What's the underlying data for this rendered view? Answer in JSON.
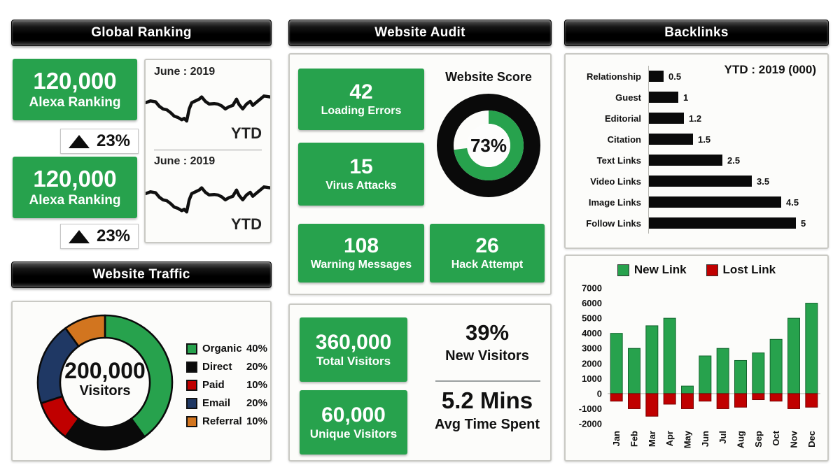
{
  "colors": {
    "green": "#27a24d",
    "green_dark": "#14662f",
    "red": "#c00000",
    "red_dark": "#7a0000",
    "navy": "#1f3864",
    "orange": "#d2751f",
    "bar_black": "#0a0a0a"
  },
  "global_ranking": {
    "title": "Global Ranking",
    "cards": [
      {
        "value": "120,000",
        "label": "Alexa Ranking",
        "delta": "23%"
      },
      {
        "value": "120,000",
        "label": "Alexa Ranking",
        "delta": "23%"
      }
    ],
    "trend_sections": [
      {
        "period": "June : 2019",
        "range_label": "YTD"
      },
      {
        "period": "June : 2019",
        "range_label": "YTD"
      }
    ]
  },
  "website_traffic": {
    "title": "Website Traffic",
    "center_value": "200,000",
    "center_label": "Visitors"
  },
  "website_audit": {
    "title": "Website Audit",
    "metrics": [
      {
        "value": "42",
        "label": "Loading Errors"
      },
      {
        "value": "15",
        "label": "Virus Attacks"
      },
      {
        "value": "108",
        "label": "Warning Messages"
      },
      {
        "value": "26",
        "label": "Hack Attempt"
      }
    ],
    "score_title": "Website Score"
  },
  "visitors_summary": {
    "metrics": [
      {
        "value": "360,000",
        "label": "Total Visitors"
      },
      {
        "value": "60,000",
        "label": "Unique Visitors"
      }
    ],
    "stats": [
      {
        "value": "39%",
        "label": "New Visitors"
      },
      {
        "value": "5.2 Mins",
        "label": "Avg Time Spent"
      }
    ]
  },
  "backlinks": {
    "title": "Backlinks",
    "ytd_label": "YTD : 2019 (000)"
  },
  "chart_data": [
    {
      "id": "alexa_trend",
      "type": "line",
      "title": "Alexa Ranking trend",
      "subtitle": "June : 2019",
      "annotation": "YTD",
      "note": "unlabeled sparkline shown twice; points are percent of chart width/height",
      "points_pct": [
        [
          0,
          42
        ],
        [
          4,
          38
        ],
        [
          8,
          40
        ],
        [
          11,
          50
        ],
        [
          14,
          56
        ],
        [
          17,
          58
        ],
        [
          20,
          64
        ],
        [
          23,
          72
        ],
        [
          26,
          75
        ],
        [
          29,
          80
        ],
        [
          31,
          77
        ],
        [
          33,
          83
        ],
        [
          35,
          56
        ],
        [
          37,
          42
        ],
        [
          40,
          38
        ],
        [
          43,
          34
        ],
        [
          45,
          29
        ],
        [
          48,
          39
        ],
        [
          51,
          45
        ],
        [
          55,
          44
        ],
        [
          58,
          45
        ],
        [
          61,
          49
        ],
        [
          64,
          56
        ],
        [
          67,
          51
        ],
        [
          70,
          48
        ],
        [
          73,
          34
        ],
        [
          75,
          46
        ],
        [
          78,
          56
        ],
        [
          81,
          45
        ],
        [
          84,
          39
        ],
        [
          86,
          48
        ],
        [
          89,
          41
        ],
        [
          92,
          34
        ],
        [
          95,
          27
        ],
        [
          100,
          29
        ]
      ]
    },
    {
      "id": "traffic_sources",
      "type": "pie",
      "title": "Website Traffic",
      "center_label": "200,000 Visitors",
      "categories": [
        "Organic",
        "Direct",
        "Paid",
        "Email",
        "Referral"
      ],
      "values": [
        40,
        20,
        10,
        20,
        10
      ],
      "value_labels": [
        "40%",
        "20%",
        "10%",
        "20%",
        "10%"
      ],
      "colors": [
        "#27a24d",
        "#0a0a0a",
        "#c00000",
        "#1f3864",
        "#d2751f"
      ],
      "legend_position": "right",
      "donut": true
    },
    {
      "id": "website_score",
      "type": "donut-gauge",
      "title": "Website Score",
      "value": 73,
      "max": 100,
      "label": "73%"
    },
    {
      "id": "backlink_types",
      "type": "bar",
      "orientation": "horizontal",
      "title": "YTD : 2019 (000)",
      "categories": [
        "Relationship",
        "Guest",
        "Editorial",
        "Citation",
        "Text Links",
        "Video Links",
        "Image Links",
        "Follow Links"
      ],
      "values": [
        0.5,
        1,
        1.2,
        1.5,
        2.5,
        3.5,
        4.5,
        5
      ],
      "xlim": [
        0,
        5.6
      ],
      "bar_color": "#0a0a0a",
      "grid": false
    },
    {
      "id": "links_by_month",
      "type": "bar",
      "categories": [
        "Jan",
        "Feb",
        "Mar",
        "Apr",
        "May",
        "Jun",
        "Jul",
        "Aug",
        "Sep",
        "Oct",
        "Nov",
        "Dec"
      ],
      "series": [
        {
          "name": "New Link",
          "color": "#27a24d",
          "values": [
            4000,
            3000,
            4500,
            5000,
            500,
            2500,
            3000,
            2200,
            2700,
            3600,
            5000,
            6000
          ]
        },
        {
          "name": "Lost Link",
          "color": "#c00000",
          "values": [
            -500,
            -1000,
            -1500,
            -700,
            -1000,
            -500,
            -1000,
            -900,
            -400,
            -500,
            -1000,
            -900
          ]
        }
      ],
      "ylim": [
        -2000,
        7000
      ],
      "ytick_step": 1000,
      "legend_position": "top",
      "grid": false
    }
  ]
}
